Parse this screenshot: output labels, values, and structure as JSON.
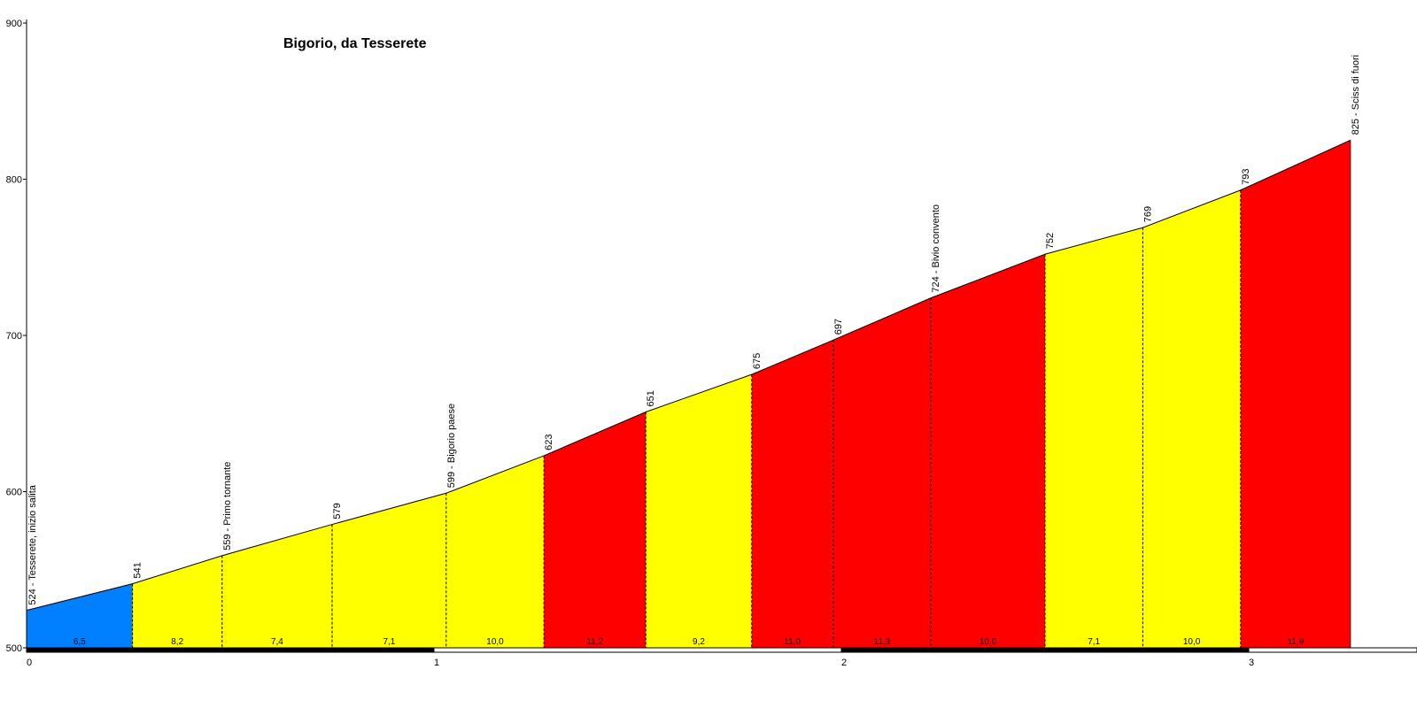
{
  "chart_data": {
    "type": "area",
    "title": "Bigorio, da Tesserete",
    "xlabel": "",
    "ylabel": "",
    "xlim": [
      0,
      3.45
    ],
    "ylim": [
      500,
      900
    ],
    "x_ticks": [
      "0",
      "1",
      "2",
      "3"
    ],
    "y_ticks": [
      "500",
      "600",
      "700",
      "800",
      "900"
    ],
    "grid": false,
    "points": [
      {
        "x": 0.0,
        "y": 524,
        "label": "524 - Tesserete, inizio salita"
      },
      {
        "x": 0.26,
        "y": 541,
        "label": "541"
      },
      {
        "x": 0.48,
        "y": 559,
        "label": "559 - Primo tornante"
      },
      {
        "x": 0.75,
        "y": 579,
        "label": "579"
      },
      {
        "x": 1.03,
        "y": 599,
        "label": "599 - Bigorio paese"
      },
      {
        "x": 1.27,
        "y": 623,
        "label": "623"
      },
      {
        "x": 1.52,
        "y": 651,
        "label": "651"
      },
      {
        "x": 1.78,
        "y": 675,
        "label": "675"
      },
      {
        "x": 1.98,
        "y": 697,
        "label": "697"
      },
      {
        "x": 2.22,
        "y": 724,
        "label": "724 - Bivio convento"
      },
      {
        "x": 2.5,
        "y": 752,
        "label": "752"
      },
      {
        "x": 2.74,
        "y": 769,
        "label": "769"
      },
      {
        "x": 2.98,
        "y": 793,
        "label": "793"
      },
      {
        "x": 3.25,
        "y": 825,
        "label": "825 - Sciss di fuori"
      }
    ],
    "segments": [
      {
        "gradient": "6,5",
        "color": "#0080ff"
      },
      {
        "gradient": "8,2",
        "color": "#ffff00"
      },
      {
        "gradient": "7,4",
        "color": "#ffff00"
      },
      {
        "gradient": "7,1",
        "color": "#ffff00"
      },
      {
        "gradient": "10,0",
        "color": "#ffff00"
      },
      {
        "gradient": "11,2",
        "color": "#ff0000"
      },
      {
        "gradient": "9,2",
        "color": "#ffff00"
      },
      {
        "gradient": "11,0",
        "color": "#ff0000"
      },
      {
        "gradient": "11,3",
        "color": "#ff0000"
      },
      {
        "gradient": "10,0",
        "color": "#ff0000"
      },
      {
        "gradient": "7,1",
        "color": "#ffff00"
      },
      {
        "gradient": "10,0",
        "color": "#ffff00"
      },
      {
        "gradient": "11,9",
        "color": "#ff0000"
      }
    ]
  }
}
